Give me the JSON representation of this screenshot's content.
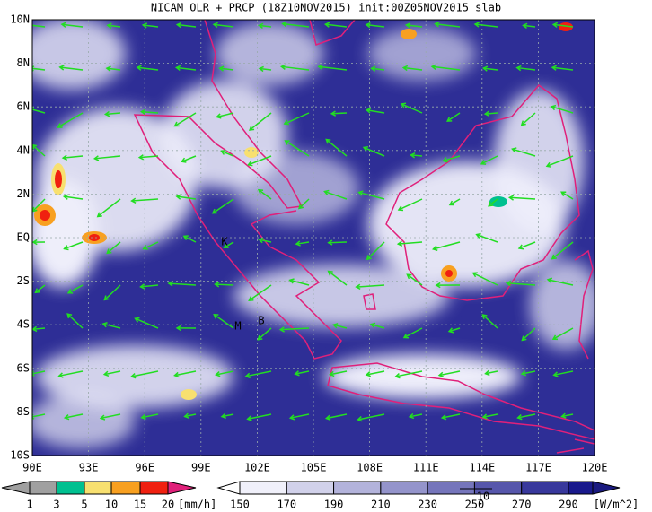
{
  "title": "NICAM OLR + PRCP (18Z10NOV2015) init:00Z05NOV2015 slab",
  "map": {
    "lon_labels": [
      "90E",
      "93E",
      "96E",
      "99E",
      "102E",
      "105E",
      "108E",
      "111E",
      "114E",
      "117E",
      "120E"
    ],
    "lat_labels": [
      "10N",
      "8N",
      "6N",
      "4N",
      "2N",
      "EQ",
      "2S",
      "4S",
      "6S",
      "8S",
      "10S"
    ],
    "place_labels": [
      "K",
      "M",
      "B"
    ]
  },
  "precip_scale": {
    "labels": [
      "1",
      "3",
      "5",
      "10",
      "15",
      "20"
    ],
    "unit": "[mm/h]"
  },
  "olr_scale": {
    "labels": [
      "150",
      "170",
      "190",
      "210",
      "230",
      "250",
      "270",
      "290"
    ],
    "unit": "[W/m^2]"
  },
  "vector_reference": "10"
}
